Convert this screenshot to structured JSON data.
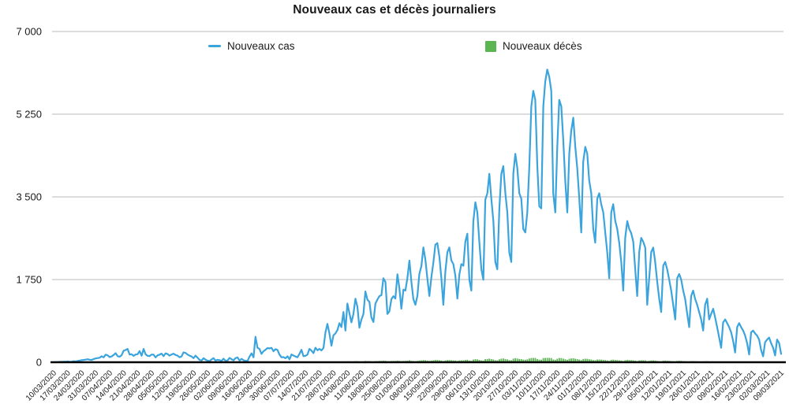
{
  "title": "Nouveaux cas et décès journaliers",
  "legend": {
    "cases_label": "Nouveaux cas",
    "deaths_label": "Nouveaux décès"
  },
  "colors": {
    "cases": "#3ba4dc",
    "deaths": "#5bb552",
    "grid": "#c8c8c8",
    "axis": "#000000",
    "text": "#1a1a1a"
  },
  "chart_data": {
    "type": "line",
    "title": "Nouveaux cas et décès journaliers",
    "xlabel": "",
    "ylabel": "",
    "ylim": [
      0,
      7000
    ],
    "grid": "horizontal",
    "legend_position": "top",
    "y_ticks": [
      {
        "value": 0,
        "label": "0"
      },
      {
        "value": 1750,
        "label": "1 750"
      },
      {
        "value": 3500,
        "label": "3 500"
      },
      {
        "value": 5250,
        "label": "5 250"
      },
      {
        "value": 7000,
        "label": "7 000"
      }
    ],
    "x_is_daily_from": "10/03/2020",
    "x_tick_every_days": 7,
    "x_tick_labels": [
      "10/03/2020",
      "17/03/2020",
      "24/03/2020",
      "31/03/2020",
      "07/04/2020",
      "14/04/2020",
      "21/04/2020",
      "28/04/2020",
      "05/05/2020",
      "12/05/2020",
      "19/05/2020",
      "26/05/2020",
      "02/06/2020",
      "09/06/2020",
      "16/06/2020",
      "23/06/2020",
      "30/06/2020",
      "07/07/2020",
      "14/07/2020",
      "21/07/2020",
      "28/07/2020",
      "04/08/2020",
      "11/08/2020",
      "18/08/2020",
      "25/08/2020",
      "01/09/2020",
      "08/09/2020",
      "15/09/2020",
      "22/09/2020",
      "29/09/2020",
      "06/10/2020",
      "13/10/2020",
      "20/10/2020",
      "27/10/2020",
      "03/11/2020",
      "10/11/2020",
      "17/11/2020",
      "24/11/2020",
      "01/12/2020",
      "08/12/2020",
      "15/12/2020",
      "22/12/2020",
      "29/12/2020",
      "05/01/2021",
      "12/01/2021",
      "19/01/2021",
      "26/01/2021",
      "02/02/2021",
      "09/02/2021",
      "16/02/2021",
      "23/02/2021",
      "02/03/2021",
      "09/03/2021"
    ],
    "series": [
      {
        "name": "Nouveaux cas",
        "type": "line",
        "color": "#3ba4dc",
        "values": [
          2,
          1,
          3,
          9,
          8,
          11,
          10,
          16,
          9,
          12,
          22,
          17,
          28,
          33,
          45,
          48,
          55,
          64,
          53,
          46,
          68,
          80,
          89,
          95,
          126,
          103,
          160,
          147,
          110,
          124,
          154,
          191,
          128,
          116,
          147,
          245,
          259,
          281,
          161,
          170,
          135,
          163,
          170,
          237,
          139,
          281,
          168,
          135,
          132,
          163,
          162,
          102,
          146,
          160,
          183,
          128,
          189,
          174,
          140,
          163,
          182,
          153,
          140,
          105,
          123,
          209,
          196,
          163,
          140,
          121,
          87,
          140,
          96,
          50,
          35,
          85,
          55,
          33,
          24,
          59,
          86,
          35,
          52,
          45,
          27,
          75,
          32,
          37,
          91,
          65,
          41,
          87,
          102,
          36,
          71,
          44,
          30,
          27,
          119,
          188,
          103,
          539,
          305,
          281,
          178,
          233,
          263,
          300,
          292,
          305,
          234,
          276,
          260,
          164,
          104,
          110,
          84,
          127,
          62,
          164,
          141,
          121,
          105,
          178,
          263,
          128,
          136,
          163,
          283,
          245,
          193,
          306,
          254,
          283,
          250,
          302,
          633,
          811,
          608,
          350,
          570,
          610,
          682,
          826,
          744,
          1063,
          670,
          1241,
          1037,
          844,
          1018,
          1345,
          1172,
          732,
          905,
          1018,
          1499,
          1325,
          1276,
          946,
          852,
          1240,
          1325,
          1402,
          1416,
          1776,
          1702,
          1021,
          1079,
          1336,
          1399,
          1346,
          1861,
          1567,
          1133,
          1537,
          1517,
          1776,
          2152,
          1702,
          1336,
          1217,
          1402,
          1869,
          2036,
          2430,
          2176,
          1766,
          1402,
          1793,
          2115,
          2488,
          2521,
          2234,
          1776,
          1217,
          1927,
          2327,
          2430,
          2152,
          2076,
          1837,
          1346,
          1855,
          2076,
          2044,
          2552,
          2721,
          1745,
          1517,
          2977,
          3387,
          3170,
          2552,
          1966,
          1745,
          3442,
          3577,
          3988,
          3464,
          2988,
          2121,
          1966,
          3256,
          3988,
          4151,
          3577,
          3170,
          2321,
          2121,
          3988,
          4412,
          4115,
          3577,
          3464,
          2821,
          2747,
          3170,
          4115,
          5415,
          5745,
          5555,
          4151,
          3300,
          3256,
          5415,
          5945,
          6195,
          6037,
          5745,
          3577,
          3170,
          4559,
          5553,
          5415,
          4701,
          3845,
          3170,
          4412,
          4899,
          5177,
          4566,
          4115,
          3463,
          2747,
          4245,
          4559,
          4412,
          3845,
          3577,
          2821,
          2532,
          3463,
          3577,
          3345,
          3170,
          2747,
          2335,
          1777,
          3170,
          3345,
          2988,
          2821,
          2532,
          2121,
          1517,
          2632,
          2988,
          2821,
          2733,
          2552,
          1966,
          1402,
          2335,
          2632,
          2552,
          2426,
          1217,
          1777,
          2335,
          2426,
          2121,
          1702,
          1345,
          1063,
          2044,
          2121,
          1966,
          1745,
          1517,
          1217,
          905,
          1777,
          1866,
          1745,
          1517,
          1336,
          1021,
          744,
          1402,
          1517,
          1336,
          1217,
          1063,
          905,
          670,
          1217,
          1345,
          905,
          1021,
          1132,
          946,
          744,
          522,
          305,
          844,
          905,
          826,
          744,
          633,
          450,
          205,
          744,
          826,
          744,
          670,
          563,
          405,
          164,
          633,
          670,
          608,
          563,
          480,
          255,
          125,
          425,
          480,
          522,
          405,
          305,
          143,
          480,
          405,
          177
        ]
      },
      {
        "name": "Nouveaux décès",
        "type": "bar",
        "color": "#5bb552",
        "values": [
          0,
          0,
          0,
          0,
          0,
          0,
          0,
          1,
          0,
          1,
          1,
          0,
          1,
          2,
          1,
          2,
          2,
          1,
          2,
          2,
          3,
          2,
          3,
          2,
          4,
          2,
          5,
          3,
          2,
          3,
          4,
          5,
          3,
          2,
          4,
          6,
          5,
          7,
          4,
          3,
          2,
          4,
          3,
          5,
          2,
          6,
          3,
          2,
          2,
          3,
          4,
          2,
          3,
          2,
          3,
          2,
          4,
          3,
          2,
          2,
          3,
          2,
          2,
          1,
          2,
          3,
          3,
          2,
          2,
          1,
          1,
          2,
          1,
          1,
          0,
          1,
          1,
          0,
          0,
          1,
          2,
          1,
          1,
          1,
          0,
          2,
          1,
          1,
          2,
          1,
          1,
          2,
          2,
          1,
          1,
          1,
          0,
          0,
          2,
          3,
          1,
          4,
          3,
          2,
          1,
          2,
          3,
          3,
          2,
          3,
          2,
          2,
          2,
          2,
          1,
          2,
          1,
          2,
          1,
          3,
          2,
          2,
          2,
          3,
          5,
          2,
          3,
          4,
          6,
          5,
          4,
          7,
          5,
          8,
          6,
          9,
          12,
          14,
          10,
          8,
          11,
          13,
          14,
          17,
          15,
          18,
          12,
          21,
          19,
          14,
          17,
          24,
          22,
          13,
          16,
          19,
          27,
          25,
          24,
          18,
          15,
          23,
          26,
          28,
          29,
          33,
          31,
          20,
          22,
          26,
          28,
          27,
          34,
          30,
          23,
          28,
          30,
          33,
          41,
          32,
          26,
          24,
          28,
          36,
          39,
          46,
          42,
          34,
          28,
          35,
          41,
          48,
          47,
          43,
          35,
          25,
          38,
          45,
          46,
          42,
          40,
          36,
          27,
          37,
          41,
          40,
          49,
          52,
          35,
          30,
          57,
          65,
          61,
          50,
          39,
          35,
          66,
          69,
          76,
          67,
          58,
          42,
          39,
          63,
          76,
          80,
          69,
          61,
          45,
          42,
          76,
          85,
          79,
          69,
          67,
          55,
          54,
          61,
          79,
          88,
          92,
          90,
          68,
          55,
          54,
          88,
          90,
          92,
          91,
          88,
          58,
          52,
          74,
          90,
          88,
          76,
          63,
          52,
          72,
          80,
          84,
          74,
          67,
          57,
          45,
          69,
          74,
          72,
          63,
          58,
          46,
          41,
          57,
          58,
          55,
          52,
          45,
          38,
          29,
          52,
          55,
          49,
          46,
          41,
          35,
          25,
          43,
          49,
          46,
          45,
          42,
          32,
          23,
          38,
          43,
          42,
          40,
          20,
          29,
          38,
          40,
          35,
          28,
          22,
          17,
          34,
          35,
          32,
          29,
          25,
          20,
          15,
          29,
          31,
          29,
          25,
          22,
          17,
          12,
          23,
          25,
          22,
          20,
          17,
          15,
          11,
          20,
          22,
          15,
          17,
          19,
          16,
          12,
          9,
          5,
          14,
          15,
          14,
          12,
          10,
          7,
          3,
          12,
          14,
          12,
          11,
          9,
          7,
          3,
          10,
          11,
          10,
          9,
          8,
          4,
          2,
          7,
          8,
          9,
          7,
          5,
          2,
          8,
          7,
          3
        ]
      }
    ]
  }
}
